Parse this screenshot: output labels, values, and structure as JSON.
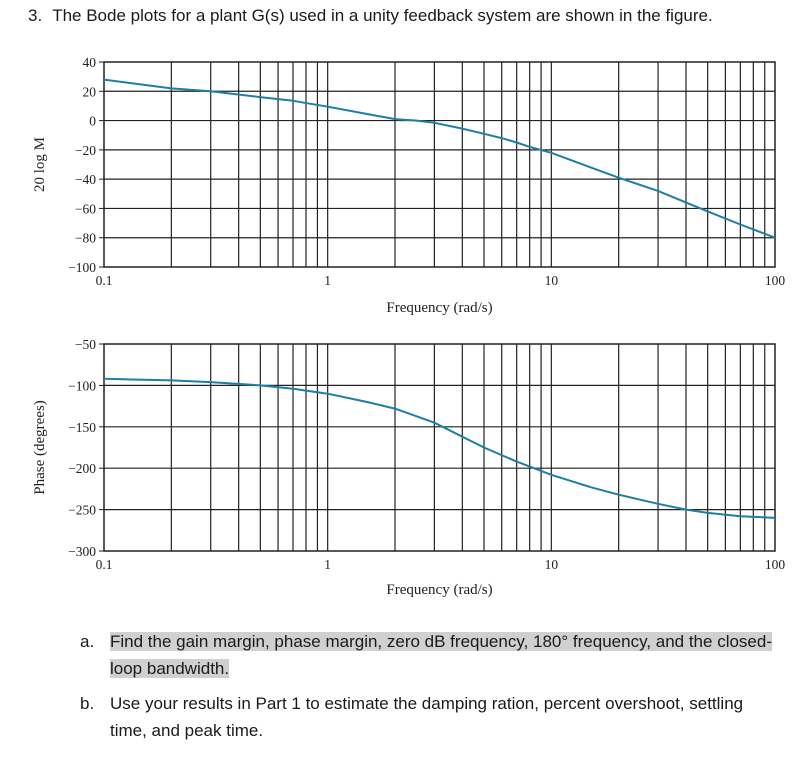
{
  "question": {
    "number": "3.",
    "text": "The Bode plots for a plant G(s) used in a unity feedback system are shown in the figure."
  },
  "chart_data": [
    {
      "type": "line",
      "xscale": "log",
      "xlim": [
        0.1,
        100
      ],
      "ylim": [
        -100,
        40
      ],
      "xlabel": "Frequency (rad/s)",
      "ylabel": "20 log M",
      "x_ticks": [
        "0.1",
        "1",
        "10",
        "100"
      ],
      "y_ticks": [
        "40",
        "20",
        "0",
        "−20",
        "−40",
        "−60",
        "−80",
        "−100"
      ],
      "grid": true,
      "line_color": "#1d7fa6",
      "series": [
        {
          "x": [
            0.1,
            0.2,
            0.3,
            0.5,
            0.7,
            1,
            1.5,
            2,
            2.5,
            3,
            4,
            5,
            6,
            7,
            8,
            10,
            15,
            20,
            30,
            50,
            70,
            100
          ],
          "y": [
            28,
            22,
            20,
            16,
            13.5,
            9.5,
            4.5,
            1,
            0,
            -1.5,
            -5.5,
            -9,
            -12,
            -15,
            -18,
            -22,
            -32,
            -39,
            -48,
            -62,
            -71,
            -80
          ]
        }
      ]
    },
    {
      "type": "line",
      "xscale": "log",
      "xlim": [
        0.1,
        100
      ],
      "ylim": [
        -300,
        -50
      ],
      "xlabel": "Frequency (rad/s)",
      "ylabel": "Phase (degrees)",
      "x_ticks": [
        "0.1",
        "1",
        "10",
        "100"
      ],
      "y_ticks": [
        "−50",
        "−100",
        "−150",
        "−200",
        "−250",
        "−300"
      ],
      "grid": true,
      "line_color": "#1d7fa6",
      "series": [
        {
          "x": [
            0.1,
            0.2,
            0.3,
            0.5,
            0.7,
            1,
            1.5,
            2,
            3,
            4,
            5,
            7,
            10,
            15,
            20,
            30,
            40,
            50,
            70,
            100
          ],
          "y": [
            -92,
            -94,
            -96,
            -100,
            -104,
            -110,
            -120,
            -128,
            -145,
            -162,
            -175,
            -192,
            -208,
            -223,
            -232,
            -243,
            -250,
            -254,
            -258,
            -260
          ]
        }
      ]
    }
  ],
  "parts": [
    {
      "letter": "a.",
      "text": "Find the gain margin, phase margin, zero dB frequency, 180° frequency, and the closed-loop bandwidth.",
      "highlighted": true
    },
    {
      "letter": "b.",
      "text": "Use your results in Part 1 to estimate the damping ration, percent overshoot, settling time, and peak time.",
      "highlighted": false
    }
  ]
}
